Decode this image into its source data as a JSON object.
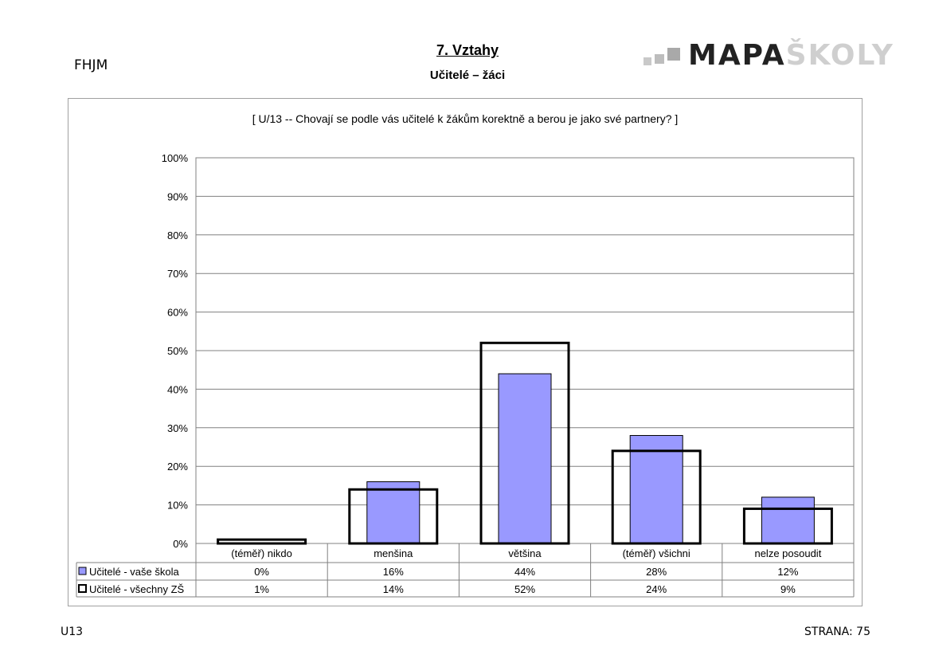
{
  "header": {
    "school_code": "FHJM",
    "title": "7. Vztahy",
    "subtitle": "Učitelé – žáci",
    "logo_part1": "MAPA",
    "logo_part2": "ŠKOLY"
  },
  "footer": {
    "left": "U13",
    "right": "STRANA: 75"
  },
  "chart_data": {
    "type": "bar",
    "title": "[ U/13 -- Chovají se podle vás učitelé k žákům korektně a berou je jako své partnery? ]",
    "categories": [
      "(téměř) nikdo",
      "menšina",
      "většina",
      "(téměř) všichni",
      "nelze posoudit"
    ],
    "series": [
      {
        "name": "Učitelé - vaše škola",
        "values": [
          0,
          16,
          44,
          28,
          12
        ],
        "labels": [
          "0%",
          "16%",
          "44%",
          "28%",
          "12%"
        ],
        "color": "#9999ff",
        "style": "filled"
      },
      {
        "name": "Učitelé - všechny ZŠ",
        "values": [
          1,
          14,
          52,
          24,
          9
        ],
        "labels": [
          "1%",
          "14%",
          "52%",
          "24%",
          "9%"
        ],
        "color": "#000000",
        "style": "outline"
      }
    ],
    "yticks": [
      "0%",
      "10%",
      "20%",
      "30%",
      "40%",
      "50%",
      "60%",
      "70%",
      "80%",
      "90%",
      "100%"
    ],
    "ylim": [
      0,
      100
    ],
    "grid": true,
    "legend": "data table below chart"
  }
}
